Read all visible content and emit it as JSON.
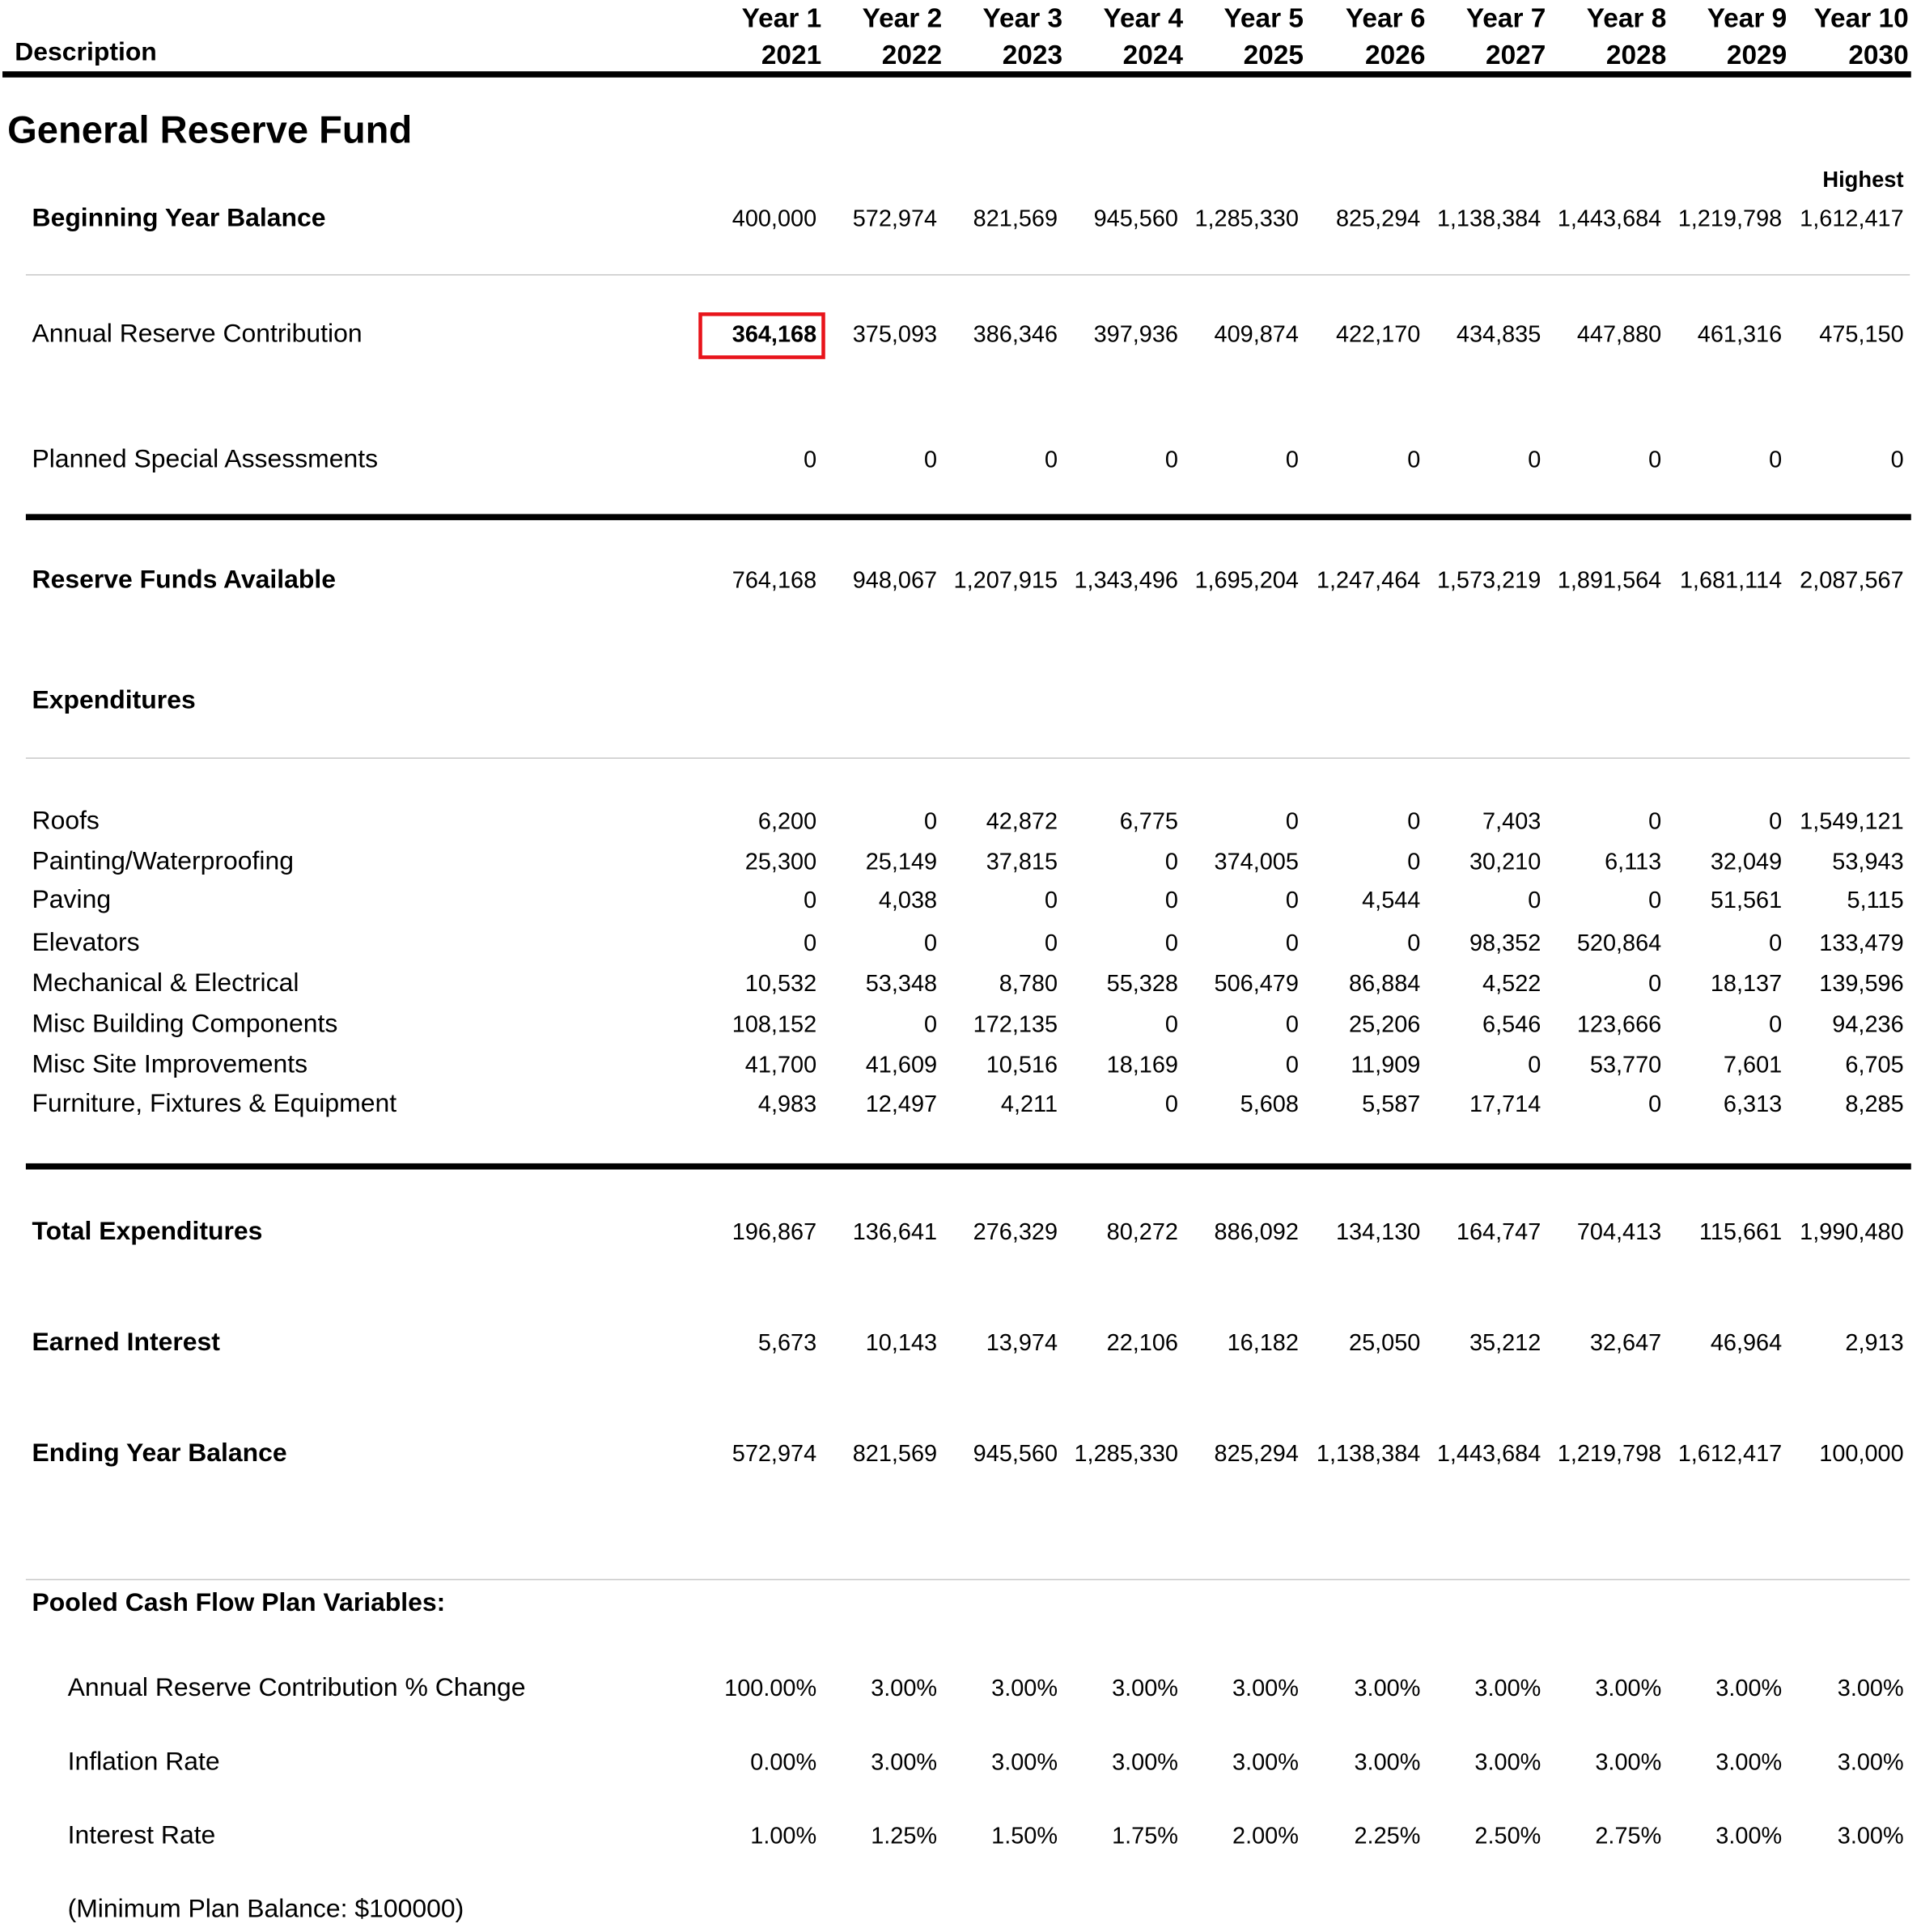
{
  "header": {
    "description_label": "Description",
    "columns": [
      {
        "year_label": "Year 1",
        "year": "2021"
      },
      {
        "year_label": "Year 2",
        "year": "2022"
      },
      {
        "year_label": "Year 3",
        "year": "2023"
      },
      {
        "year_label": "Year 4",
        "year": "2024"
      },
      {
        "year_label": "Year 5",
        "year": "2025"
      },
      {
        "year_label": "Year 6",
        "year": "2026"
      },
      {
        "year_label": "Year 7",
        "year": "2027"
      },
      {
        "year_label": "Year 8",
        "year": "2028"
      },
      {
        "year_label": "Year 9",
        "year": "2029"
      },
      {
        "year_label": "Year 10",
        "year": "2030"
      }
    ]
  },
  "fund_title": "General Reserve Fund",
  "highest_label": "Highest",
  "beginning": {
    "label": "Beginning Year Balance",
    "values": [
      "400,000",
      "572,974",
      "821,569",
      "945,560",
      "1,285,330",
      "825,294",
      "1,138,384",
      "1,443,684",
      "1,219,798",
      "1,612,417"
    ]
  },
  "contribution": {
    "label": "Annual Reserve Contribution",
    "values": [
      "364,168",
      "375,093",
      "386,346",
      "397,936",
      "409,874",
      "422,170",
      "434,835",
      "447,880",
      "461,316",
      "475,150"
    ]
  },
  "assessments": {
    "label": "Planned Special Assessments",
    "values": [
      "0",
      "0",
      "0",
      "0",
      "0",
      "0",
      "0",
      "0",
      "0",
      "0"
    ]
  },
  "available": {
    "label": "Reserve Funds Available",
    "values": [
      "764,168",
      "948,067",
      "1,207,915",
      "1,343,496",
      "1,695,204",
      "1,247,464",
      "1,573,219",
      "1,891,564",
      "1,681,114",
      "2,087,567"
    ]
  },
  "expenditures_label": "Expenditures",
  "expenditure_rows": [
    {
      "label": "Roofs",
      "values": [
        "6,200",
        "0",
        "42,872",
        "6,775",
        "0",
        "0",
        "7,403",
        "0",
        "0",
        "1,549,121"
      ]
    },
    {
      "label": "Painting/Waterproofing",
      "values": [
        "25,300",
        "25,149",
        "37,815",
        "0",
        "374,005",
        "0",
        "30,210",
        "6,113",
        "32,049",
        "53,943"
      ]
    },
    {
      "label": "Paving",
      "values": [
        "0",
        "4,038",
        "0",
        "0",
        "0",
        "4,544",
        "0",
        "0",
        "51,561",
        "5,115"
      ]
    },
    {
      "label": "Elevators",
      "values": [
        "0",
        "0",
        "0",
        "0",
        "0",
        "0",
        "98,352",
        "520,864",
        "0",
        "133,479"
      ]
    },
    {
      "label": "Mechanical & Electrical",
      "values": [
        "10,532",
        "53,348",
        "8,780",
        "55,328",
        "506,479",
        "86,884",
        "4,522",
        "0",
        "18,137",
        "139,596"
      ]
    },
    {
      "label": "Misc Building Components",
      "values": [
        "108,152",
        "0",
        "172,135",
        "0",
        "0",
        "25,206",
        "6,546",
        "123,666",
        "0",
        "94,236"
      ]
    },
    {
      "label": "Misc Site Improvements",
      "values": [
        "41,700",
        "41,609",
        "10,516",
        "18,169",
        "0",
        "11,909",
        "0",
        "53,770",
        "7,601",
        "6,705"
      ]
    },
    {
      "label": "Furniture, Fixtures & Equipment",
      "values": [
        "4,983",
        "12,497",
        "4,211",
        "0",
        "5,608",
        "5,587",
        "17,714",
        "0",
        "6,313",
        "8,285"
      ]
    }
  ],
  "total_expenditures": {
    "label": "Total Expenditures",
    "values": [
      "196,867",
      "136,641",
      "276,329",
      "80,272",
      "886,092",
      "134,130",
      "164,747",
      "704,413",
      "115,661",
      "1,990,480"
    ]
  },
  "earned_interest": {
    "label": "Earned Interest",
    "values": [
      "5,673",
      "10,143",
      "13,974",
      "22,106",
      "16,182",
      "25,050",
      "35,212",
      "32,647",
      "46,964",
      "2,913"
    ]
  },
  "ending": {
    "label": "Ending Year Balance",
    "values": [
      "572,974",
      "821,569",
      "945,560",
      "1,285,330",
      "825,294",
      "1,138,384",
      "1,443,684",
      "1,219,798",
      "1,612,417",
      "100,000"
    ]
  },
  "variables": {
    "title": "Pooled Cash Flow Plan Variables:",
    "rows": [
      {
        "label": "Annual Reserve Contribution % Change",
        "values": [
          "100.00%",
          "3.00%",
          "3.00%",
          "3.00%",
          "3.00%",
          "3.00%",
          "3.00%",
          "3.00%",
          "3.00%",
          "3.00%"
        ]
      },
      {
        "label": "Inflation Rate",
        "values": [
          "0.00%",
          "3.00%",
          "3.00%",
          "3.00%",
          "3.00%",
          "3.00%",
          "3.00%",
          "3.00%",
          "3.00%",
          "3.00%"
        ]
      },
      {
        "label": "Interest Rate",
        "values": [
          "1.00%",
          "1.25%",
          "1.50%",
          "1.75%",
          "2.00%",
          "2.25%",
          "2.50%",
          "2.75%",
          "3.00%",
          "3.00%"
        ]
      }
    ],
    "min_balance_note": "(Minimum Plan Balance:  $100000)"
  },
  "colors": {
    "highlight_border": "#e8141b",
    "rule": "#000000",
    "thin_rule": "#c8c8c8"
  }
}
